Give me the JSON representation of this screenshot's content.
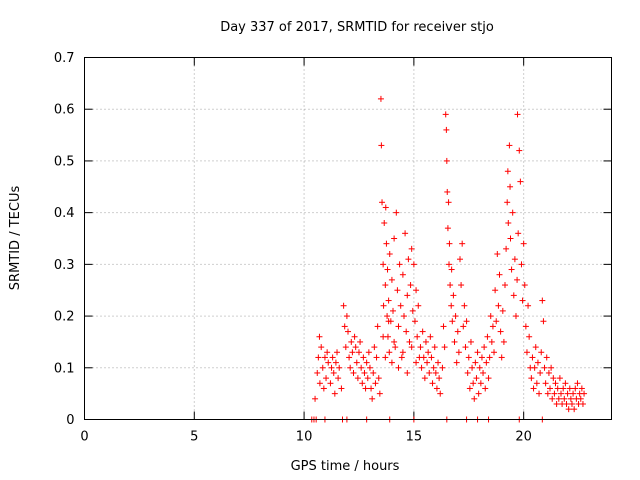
{
  "chart_data": {
    "type": "scatter",
    "title": "Day 337 of 2017, SRMTID for receiver stjo",
    "xlabel": "GPS time / hours",
    "ylabel": "SRMTID / TECUs",
    "xlim": [
      0,
      24
    ],
    "ylim": [
      0,
      0.7
    ],
    "x_ticks": [
      0,
      5,
      10,
      15,
      20
    ],
    "x_tick_labels": [
      "0",
      "5",
      "10",
      "15",
      "20"
    ],
    "y_ticks": [
      0,
      0.1,
      0.2,
      0.3,
      0.4,
      0.5,
      0.6,
      0.7
    ],
    "y_tick_labels": [
      "0",
      "0.1",
      "0.2",
      "0.3",
      "0.4",
      "0.5",
      "0.6",
      "0.7"
    ],
    "grid": true,
    "marker": "+",
    "series": [
      {
        "name": "SRMTID",
        "color": "#ff0000",
        "points": [
          [
            10.35,
            0.0
          ],
          [
            10.45,
            0.0
          ],
          [
            10.55,
            0.0
          ],
          [
            10.95,
            0.0
          ],
          [
            11.75,
            0.0
          ],
          [
            11.95,
            0.0
          ],
          [
            12.85,
            0.0
          ],
          [
            13.9,
            0.0
          ],
          [
            16.5,
            0.0
          ],
          [
            17.4,
            0.0
          ],
          [
            17.9,
            0.0
          ],
          [
            18.4,
            0.0
          ],
          [
            19.8,
            0.0
          ],
          [
            20.85,
            0.0
          ],
          [
            15.0,
            0.0
          ],
          [
            10.5,
            0.04
          ],
          [
            10.6,
            0.09
          ],
          [
            10.65,
            0.12
          ],
          [
            10.7,
            0.16
          ],
          [
            10.72,
            0.07
          ],
          [
            10.78,
            0.14
          ],
          [
            10.85,
            0.1
          ],
          [
            10.9,
            0.06
          ],
          [
            10.95,
            0.12
          ],
          [
            11.0,
            0.08
          ],
          [
            11.05,
            0.13
          ],
          [
            11.1,
            0.11
          ],
          [
            11.2,
            0.07
          ],
          [
            11.25,
            0.1
          ],
          [
            11.3,
            0.12
          ],
          [
            11.35,
            0.09
          ],
          [
            11.4,
            0.05
          ],
          [
            11.45,
            0.11
          ],
          [
            11.5,
            0.13
          ],
          [
            11.55,
            0.08
          ],
          [
            11.6,
            0.1
          ],
          [
            11.7,
            0.06
          ],
          [
            11.8,
            0.22
          ],
          [
            11.85,
            0.18
          ],
          [
            11.9,
            0.14
          ],
          [
            11.95,
            0.2
          ],
          [
            12.0,
            0.17
          ],
          [
            12.05,
            0.12
          ],
          [
            12.1,
            0.1
          ],
          [
            12.15,
            0.15
          ],
          [
            12.2,
            0.13
          ],
          [
            12.25,
            0.09
          ],
          [
            12.3,
            0.16
          ],
          [
            12.35,
            0.14
          ],
          [
            12.4,
            0.11
          ],
          [
            12.45,
            0.08
          ],
          [
            12.5,
            0.13
          ],
          [
            12.55,
            0.15
          ],
          [
            12.6,
            0.1
          ],
          [
            12.65,
            0.07
          ],
          [
            12.7,
            0.12
          ],
          [
            12.75,
            0.09
          ],
          [
            12.8,
            0.06
          ],
          [
            12.85,
            0.11
          ],
          [
            12.9,
            0.08
          ],
          [
            12.95,
            0.13
          ],
          [
            13.0,
            0.1
          ],
          [
            13.05,
            0.06
          ],
          [
            13.1,
            0.04
          ],
          [
            13.15,
            0.09
          ],
          [
            13.2,
            0.14
          ],
          [
            13.25,
            0.07
          ],
          [
            13.3,
            0.12
          ],
          [
            13.35,
            0.18
          ],
          [
            13.4,
            0.08
          ],
          [
            13.45,
            0.05
          ],
          [
            13.5,
            0.62
          ],
          [
            13.52,
            0.53
          ],
          [
            13.55,
            0.42
          ],
          [
            13.6,
            0.3
          ],
          [
            13.62,
            0.22
          ],
          [
            13.65,
            0.38
          ],
          [
            13.7,
            0.26
          ],
          [
            13.72,
            0.41
          ],
          [
            13.75,
            0.34
          ],
          [
            13.78,
            0.2
          ],
          [
            13.8,
            0.29
          ],
          [
            13.82,
            0.16
          ],
          [
            13.85,
            0.23
          ],
          [
            13.88,
            0.13
          ],
          [
            13.9,
            0.32
          ],
          [
            13.95,
            0.19
          ],
          [
            14.0,
            0.27
          ],
          [
            14.05,
            0.21
          ],
          [
            14.1,
            0.35
          ],
          [
            14.15,
            0.14
          ],
          [
            14.2,
            0.4
          ],
          [
            14.25,
            0.25
          ],
          [
            14.3,
            0.18
          ],
          [
            14.35,
            0.3
          ],
          [
            14.4,
            0.22
          ],
          [
            14.45,
            0.12
          ],
          [
            14.5,
            0.28
          ],
          [
            14.55,
            0.2
          ],
          [
            14.6,
            0.36
          ],
          [
            14.65,
            0.17
          ],
          [
            14.7,
            0.24
          ],
          [
            14.75,
            0.31
          ],
          [
            14.8,
            0.15
          ],
          [
            14.85,
            0.26
          ],
          [
            14.9,
            0.33
          ],
          [
            14.95,
            0.21
          ],
          [
            15.0,
            0.3
          ],
          [
            15.05,
            0.19
          ],
          [
            15.1,
            0.25
          ],
          [
            15.15,
            0.16
          ],
          [
            15.2,
            0.22
          ],
          [
            15.25,
            0.12
          ],
          [
            13.6,
            0.16
          ],
          [
            13.7,
            0.12
          ],
          [
            13.85,
            0.19
          ],
          [
            14.0,
            0.11
          ],
          [
            14.1,
            0.15
          ],
          [
            14.3,
            0.1
          ],
          [
            14.5,
            0.13
          ],
          [
            14.7,
            0.09
          ],
          [
            14.9,
            0.14
          ],
          [
            15.1,
            0.11
          ],
          [
            15.3,
            0.14
          ],
          [
            15.35,
            0.1
          ],
          [
            15.4,
            0.17
          ],
          [
            15.45,
            0.12
          ],
          [
            15.5,
            0.08
          ],
          [
            15.55,
            0.15
          ],
          [
            15.6,
            0.11
          ],
          [
            15.65,
            0.13
          ],
          [
            15.7,
            0.09
          ],
          [
            15.75,
            0.16
          ],
          [
            15.8,
            0.12
          ],
          [
            15.85,
            0.07
          ],
          [
            15.9,
            0.1
          ],
          [
            15.95,
            0.14
          ],
          [
            16.0,
            0.09
          ],
          [
            16.05,
            0.06
          ],
          [
            16.1,
            0.11
          ],
          [
            16.15,
            0.08
          ],
          [
            16.2,
            0.05
          ],
          [
            16.3,
            0.1
          ],
          [
            16.35,
            0.18
          ],
          [
            16.4,
            0.14
          ],
          [
            16.45,
            0.59
          ],
          [
            16.48,
            0.56
          ],
          [
            16.5,
            0.5
          ],
          [
            16.52,
            0.44
          ],
          [
            16.55,
            0.37
          ],
          [
            16.58,
            0.42
          ],
          [
            16.6,
            0.3
          ],
          [
            16.62,
            0.34
          ],
          [
            16.65,
            0.26
          ],
          [
            16.7,
            0.22
          ],
          [
            16.72,
            0.29
          ],
          [
            16.75,
            0.19
          ],
          [
            16.8,
            0.24
          ],
          [
            16.85,
            0.15
          ],
          [
            16.9,
            0.2
          ],
          [
            16.95,
            0.11
          ],
          [
            17.0,
            0.17
          ],
          [
            17.05,
            0.13
          ],
          [
            17.1,
            0.31
          ],
          [
            17.15,
            0.26
          ],
          [
            17.2,
            0.34
          ],
          [
            17.25,
            0.18
          ],
          [
            17.3,
            0.22
          ],
          [
            17.35,
            0.14
          ],
          [
            17.4,
            0.19
          ],
          [
            17.45,
            0.09
          ],
          [
            17.5,
            0.12
          ],
          [
            17.55,
            0.06
          ],
          [
            17.6,
            0.15
          ],
          [
            17.65,
            0.1
          ],
          [
            17.7,
            0.07
          ],
          [
            17.75,
            0.04
          ],
          [
            17.8,
            0.11
          ],
          [
            17.85,
            0.08
          ],
          [
            17.9,
            0.13
          ],
          [
            17.95,
            0.05
          ],
          [
            18.0,
            0.1
          ],
          [
            18.05,
            0.07
          ],
          [
            18.1,
            0.12
          ],
          [
            18.15,
            0.09
          ],
          [
            18.2,
            0.14
          ],
          [
            18.25,
            0.06
          ],
          [
            18.3,
            0.11
          ],
          [
            18.35,
            0.16
          ],
          [
            18.4,
            0.08
          ],
          [
            18.45,
            0.12
          ],
          [
            18.5,
            0.2
          ],
          [
            18.55,
            0.15
          ],
          [
            18.6,
            0.18
          ],
          [
            18.65,
            0.13
          ],
          [
            18.7,
            0.25
          ],
          [
            18.75,
            0.19
          ],
          [
            18.8,
            0.32
          ],
          [
            18.85,
            0.22
          ],
          [
            18.9,
            0.28
          ],
          [
            18.95,
            0.17
          ],
          [
            19.0,
            0.12
          ],
          [
            19.05,
            0.21
          ],
          [
            19.1,
            0.15
          ],
          [
            19.15,
            0.26
          ],
          [
            19.2,
            0.33
          ],
          [
            19.25,
            0.42
          ],
          [
            19.28,
            0.48
          ],
          [
            19.3,
            0.38
          ],
          [
            19.35,
            0.53
          ],
          [
            19.38,
            0.45
          ],
          [
            19.4,
            0.35
          ],
          [
            19.45,
            0.29
          ],
          [
            19.5,
            0.4
          ],
          [
            19.55,
            0.24
          ],
          [
            19.6,
            0.31
          ],
          [
            19.65,
            0.2
          ],
          [
            19.7,
            0.27
          ],
          [
            19.72,
            0.59
          ],
          [
            19.75,
            0.36
          ],
          [
            19.8,
            0.52
          ],
          [
            19.85,
            0.46
          ],
          [
            19.9,
            0.3
          ],
          [
            19.95,
            0.23
          ],
          [
            20.0,
            0.34
          ],
          [
            20.05,
            0.26
          ],
          [
            20.1,
            0.18
          ],
          [
            20.15,
            0.13
          ],
          [
            20.2,
            0.22
          ],
          [
            20.25,
            0.16
          ],
          [
            20.3,
            0.1
          ],
          [
            20.35,
            0.08
          ],
          [
            20.4,
            0.12
          ],
          [
            20.45,
            0.06
          ],
          [
            20.5,
            0.1
          ],
          [
            20.55,
            0.14
          ],
          [
            20.6,
            0.07
          ],
          [
            20.65,
            0.11
          ],
          [
            20.7,
            0.05
          ],
          [
            20.75,
            0.09
          ],
          [
            20.8,
            0.13
          ],
          [
            20.85,
            0.23
          ],
          [
            20.9,
            0.19
          ],
          [
            20.95,
            0.1
          ],
          [
            21.0,
            0.07
          ],
          [
            21.05,
            0.12
          ],
          [
            21.1,
            0.05
          ],
          [
            21.15,
            0.09
          ],
          [
            21.2,
            0.06
          ],
          [
            21.25,
            0.1
          ],
          [
            21.3,
            0.04
          ],
          [
            21.35,
            0.08
          ],
          [
            21.4,
            0.05
          ],
          [
            21.45,
            0.07
          ],
          [
            21.5,
            0.03
          ],
          [
            21.55,
            0.06
          ],
          [
            21.6,
            0.04
          ],
          [
            21.65,
            0.08
          ],
          [
            21.7,
            0.05
          ],
          [
            21.75,
            0.03
          ],
          [
            21.8,
            0.06
          ],
          [
            21.85,
            0.04
          ],
          [
            21.9,
            0.07
          ],
          [
            21.95,
            0.03
          ],
          [
            22.0,
            0.05
          ],
          [
            22.05,
            0.02
          ],
          [
            22.1,
            0.06
          ],
          [
            22.15,
            0.04
          ],
          [
            22.2,
            0.03
          ],
          [
            22.25,
            0.05
          ],
          [
            22.3,
            0.02
          ],
          [
            22.35,
            0.06
          ],
          [
            22.4,
            0.04
          ],
          [
            22.45,
            0.07
          ],
          [
            22.5,
            0.03
          ],
          [
            22.55,
            0.05
          ],
          [
            22.6,
            0.04
          ],
          [
            22.65,
            0.06
          ],
          [
            22.7,
            0.03
          ],
          [
            22.75,
            0.05
          ]
        ]
      }
    ]
  }
}
